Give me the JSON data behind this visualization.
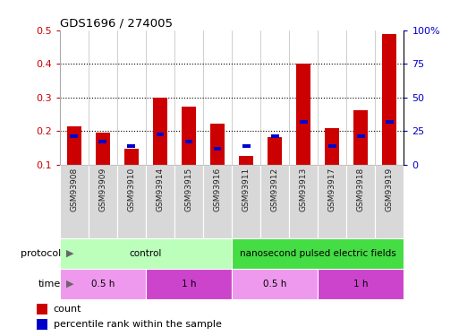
{
  "title": "GDS1696 / 274005",
  "samples": [
    "GSM93908",
    "GSM93909",
    "GSM93910",
    "GSM93914",
    "GSM93915",
    "GSM93916",
    "GSM93911",
    "GSM93912",
    "GSM93913",
    "GSM93917",
    "GSM93918",
    "GSM93919"
  ],
  "count_values": [
    0.215,
    0.195,
    0.148,
    0.3,
    0.272,
    0.222,
    0.127,
    0.183,
    0.4,
    0.208,
    0.262,
    0.49
  ],
  "percentile_values": [
    0.185,
    0.168,
    0.155,
    0.191,
    0.168,
    0.148,
    0.155,
    0.185,
    0.227,
    0.155,
    0.185,
    0.227
  ],
  "bar_bottom": 0.1,
  "ylim_left": [
    0.1,
    0.5
  ],
  "ylim_right": [
    0.0,
    100.0
  ],
  "yticks_left": [
    0.1,
    0.2,
    0.3,
    0.4,
    0.5
  ],
  "yticks_right": [
    0,
    25,
    50,
    75,
    100
  ],
  "ytick_labels_right": [
    "0",
    "25",
    "50",
    "75",
    "100%"
  ],
  "red_color": "#cc0000",
  "blue_color": "#0000cc",
  "protocol_groups": [
    {
      "label": "control",
      "start": 0,
      "end": 6,
      "color": "#bbffbb"
    },
    {
      "label": "nanosecond pulsed electric fields",
      "start": 6,
      "end": 12,
      "color": "#44dd44"
    }
  ],
  "time_groups": [
    {
      "label": "0.5 h",
      "start": 0,
      "end": 3,
      "color": "#ee99ee"
    },
    {
      "label": "1 h",
      "start": 3,
      "end": 6,
      "color": "#cc44cc"
    },
    {
      "label": "0.5 h",
      "start": 6,
      "end": 9,
      "color": "#ee99ee"
    },
    {
      "label": "1 h",
      "start": 9,
      "end": 12,
      "color": "#cc44cc"
    }
  ],
  "legend_count_label": "count",
  "legend_pct_label": "percentile rank within the sample",
  "bar_width": 0.5,
  "bg_color": "#ffffff",
  "sample_area_bg": "#d8d8d8"
}
